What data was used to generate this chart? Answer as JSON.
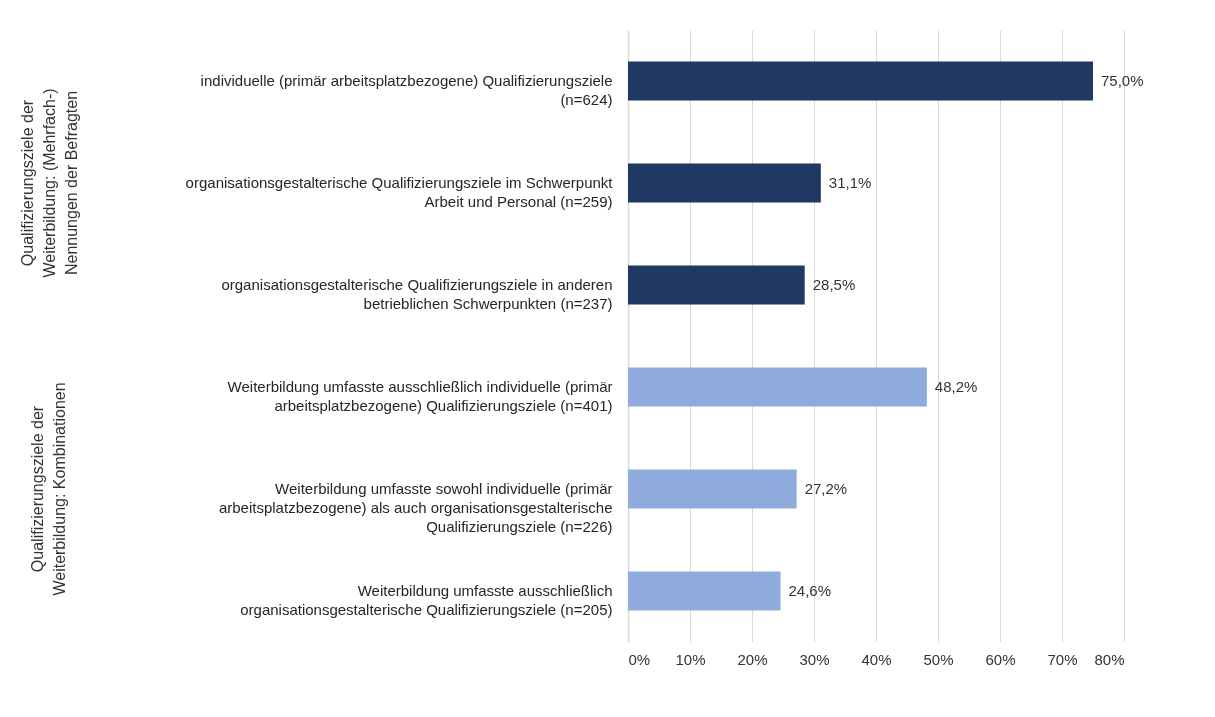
{
  "chart_data": {
    "type": "bar",
    "orientation": "horizontal",
    "categories": [
      "individuelle (primär arbeitsplatzbezogene) Qualifizierungsziele (n=624)",
      "organisationsgestalterische Qualifizierungsziele im Schwerpunkt Arbeit und Personal (n=259)",
      "organisationsgestalterische Qualifizierungsziele in anderen betrieblichen Schwerpunkten (n=237)",
      "Weiterbildung umfasste ausschließlich individuelle (primär arbeitsplatzbezogene) Qualifizierungsziele (n=401)",
      "Weiterbildung umfasste sowohl individuelle (primär arbeitsplatzbezogene) als auch organisationsgestalterische Qualifizierungsziele (n=226)",
      "Weiterbildung umfasste ausschließlich organisationsgestalterische Qualifizierungsziele (n=205)"
    ],
    "values": [
      75.0,
      31.1,
      28.5,
      48.2,
      27.2,
      24.6
    ],
    "value_labels": [
      "75,0%",
      "31,1%",
      "28,5%",
      "48,2%",
      "27,2%",
      "24,6%"
    ],
    "colors": [
      "#203864",
      "#203864",
      "#203864",
      "#8faadc",
      "#8faadc",
      "#8faadc"
    ],
    "xlim": [
      0,
      80
    ],
    "xticks": [
      {
        "value": 0,
        "label": "0%"
      },
      {
        "value": 10,
        "label": "10%"
      },
      {
        "value": 20,
        "label": "20%"
      },
      {
        "value": 30,
        "label": "30%"
      },
      {
        "value": 40,
        "label": "40%"
      },
      {
        "value": 50,
        "label": "50%"
      },
      {
        "value": 60,
        "label": "60%"
      },
      {
        "value": 70,
        "label": "70%"
      },
      {
        "value": 80,
        "label": "80%"
      }
    ],
    "grid": "x",
    "annotations": [
      "Qualifizierungsziele der Weiterbildung: (Mehrfach-) Nennungen der Befragten",
      "Qualifizierungsziele der Weiterbildung: Kombinationen"
    ]
  }
}
